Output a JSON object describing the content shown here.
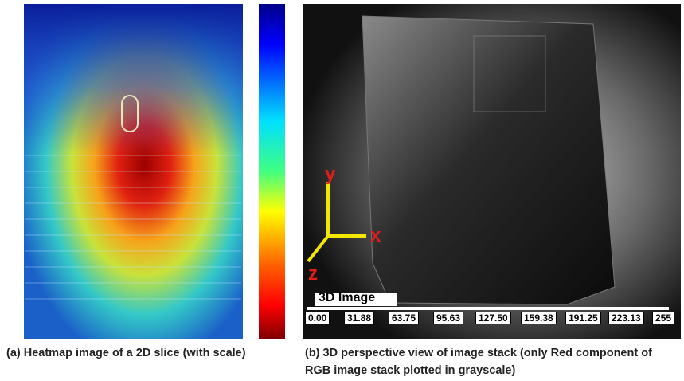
{
  "panel_a": {
    "caption": "(a) Heatmap image of a 2D slice (with scale)"
  },
  "panel_b": {
    "axes": {
      "y": "y",
      "x": "x",
      "z": "z"
    },
    "label": "3D Image",
    "scale_labels": [
      "0.00",
      "31.88",
      "63.75",
      "95.63",
      "127.50",
      "159.38",
      "191.25",
      "223.13",
      "255"
    ],
    "caption": "(b) 3D perspective view of image stack (only Red component of RGB image stack plotted in grayscale)"
  }
}
